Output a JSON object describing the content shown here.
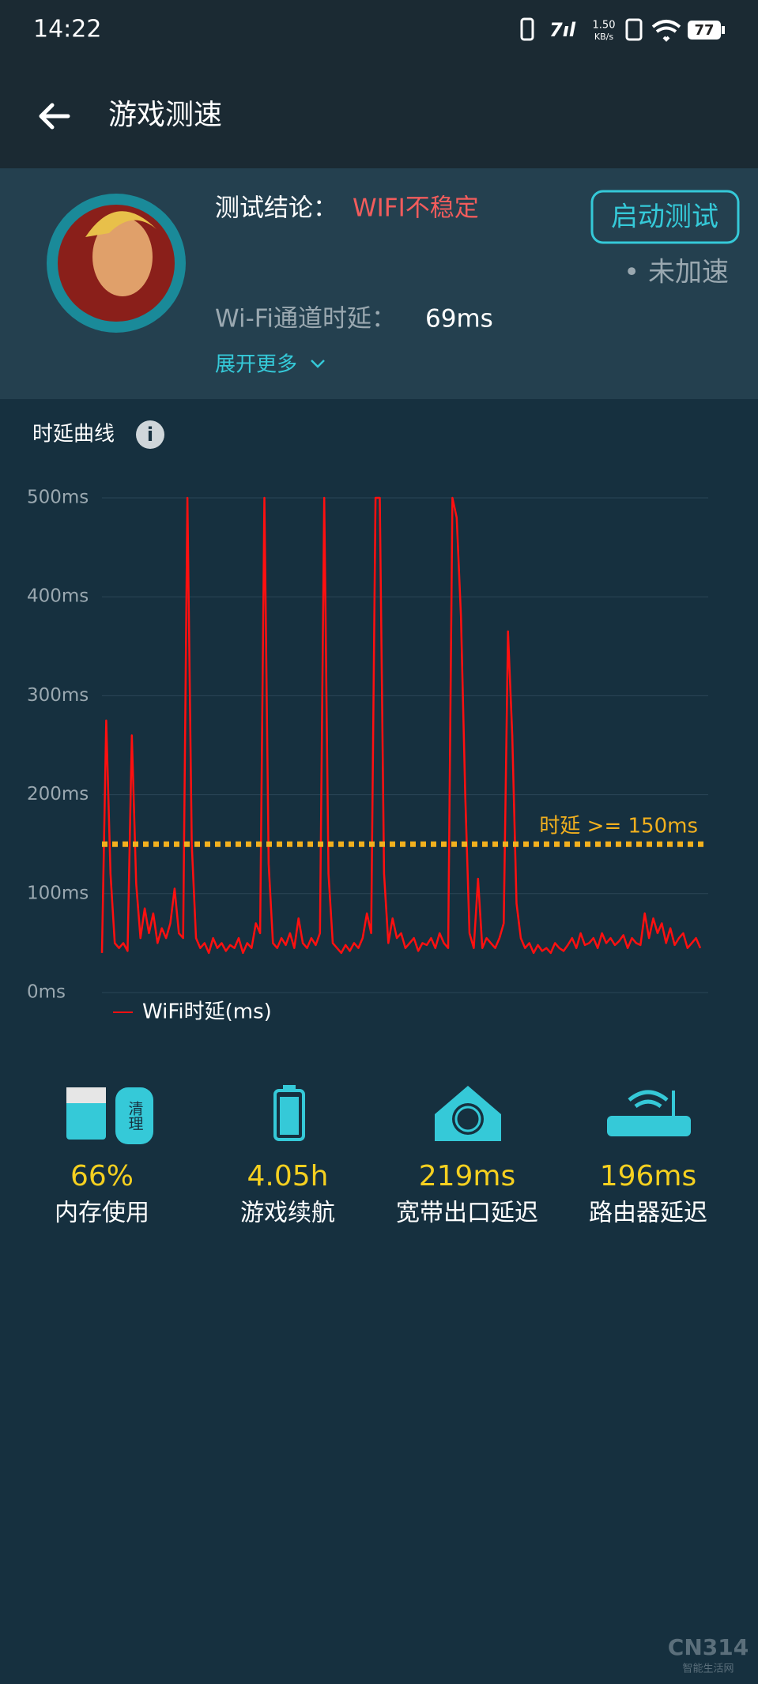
{
  "status_bar": {
    "time": "14:22",
    "net_speed": "1.50",
    "net_unit": "KB/s",
    "battery": "77"
  },
  "header": {
    "title": "游戏测速"
  },
  "card": {
    "conclusion_label": "测试结论：",
    "conclusion_value": "WIFI不稳定",
    "button": "启动测试",
    "accel_status": "• 未加速",
    "delay_label": "Wi-Fi通道时延：",
    "delay_value": "69ms",
    "expand": "展开更多"
  },
  "section_title": "时延曲线",
  "chart_data": {
    "type": "line",
    "ylim": [
      0,
      500
    ],
    "yticks": [
      {
        "value": 0,
        "label": "0ms"
      },
      {
        "value": 100,
        "label": "100ms"
      },
      {
        "value": 200,
        "label": "200ms"
      },
      {
        "value": 300,
        "label": "300ms"
      },
      {
        "value": 400,
        "label": "400ms"
      },
      {
        "value": 500,
        "label": "500ms"
      }
    ],
    "grid": true,
    "threshold": {
      "value": 150,
      "label": "时延  >=  150ms",
      "color": "#f2b01e"
    },
    "series": [
      {
        "name": "WiFi时延(ms)",
        "color": "#ff1010",
        "values": [
          40,
          275,
          120,
          50,
          45,
          50,
          42,
          260,
          110,
          55,
          85,
          60,
          80,
          50,
          65,
          55,
          70,
          105,
          60,
          55,
          500,
          150,
          55,
          45,
          50,
          40,
          55,
          45,
          50,
          42,
          48,
          45,
          55,
          40,
          50,
          45,
          70,
          60,
          500,
          130,
          50,
          45,
          55,
          48,
          60,
          45,
          75,
          50,
          45,
          55,
          48,
          60,
          500,
          120,
          50,
          45,
          40,
          48,
          42,
          50,
          45,
          55,
          80,
          60,
          500,
          500,
          120,
          50,
          75,
          55,
          60,
          45,
          50,
          55,
          42,
          50,
          48,
          55,
          45,
          60,
          50,
          45,
          500,
          480,
          380,
          200,
          60,
          45,
          115,
          45,
          55,
          50,
          45,
          55,
          70,
          365,
          260,
          90,
          55,
          45,
          50,
          40,
          48,
          42,
          45,
          40,
          50,
          45,
          42,
          48,
          55,
          45,
          60,
          48,
          50,
          55,
          45,
          60,
          50,
          55,
          48,
          52,
          58,
          45,
          55,
          50,
          48,
          80,
          55,
          75,
          60,
          70,
          50,
          65,
          48,
          55,
          60,
          45,
          50,
          55,
          45
        ]
      }
    ],
    "legend": "bottom-left"
  },
  "stats": [
    {
      "value": "66%",
      "label": "内存使用",
      "badge": "清理"
    },
    {
      "value": "4.05h",
      "label": "游戏续航"
    },
    {
      "value": "219ms",
      "label": "宽带出口延迟"
    },
    {
      "value": "196ms",
      "label": "路由器延迟"
    }
  ],
  "watermark": {
    "brand": "CN314",
    "sub": "智能生活网"
  }
}
